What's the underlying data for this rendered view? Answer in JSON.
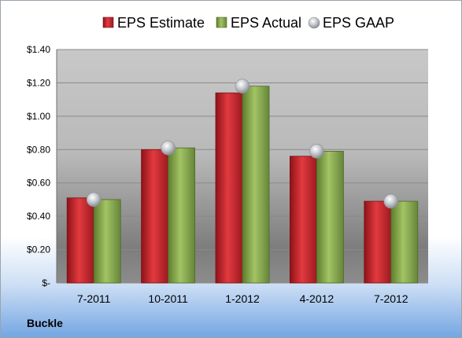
{
  "chart_data": {
    "type": "bar",
    "title": "",
    "xlabel": "",
    "ylabel": "",
    "categories": [
      "7-2011",
      "10-2011",
      "1-2012",
      "4-2012",
      "7-2012"
    ],
    "series": [
      {
        "name": "EPS Estimate",
        "kind": "bar",
        "color": "#c0262d",
        "values": [
          0.51,
          0.8,
          1.14,
          0.76,
          0.49
        ]
      },
      {
        "name": "EPS Actual",
        "kind": "bar",
        "color": "#86a84e",
        "values": [
          0.5,
          0.81,
          1.18,
          0.79,
          0.49
        ]
      },
      {
        "name": "EPS GAAP",
        "kind": "marker",
        "color": "#b8bcc2",
        "values": [
          0.5,
          0.81,
          1.18,
          0.79,
          0.49
        ]
      }
    ],
    "ylim": [
      0,
      1.4
    ],
    "y_ticks": [
      0,
      0.2,
      0.4,
      0.6,
      0.8,
      1.0,
      1.2,
      1.4
    ],
    "y_tick_labels": [
      "$-",
      "$0.20",
      "$0.40",
      "$0.60",
      "$0.80",
      "$1.00",
      "$1.20",
      "$1.40"
    ],
    "grid": true,
    "legend_position": "top"
  },
  "footer": {
    "company": "Buckle"
  }
}
